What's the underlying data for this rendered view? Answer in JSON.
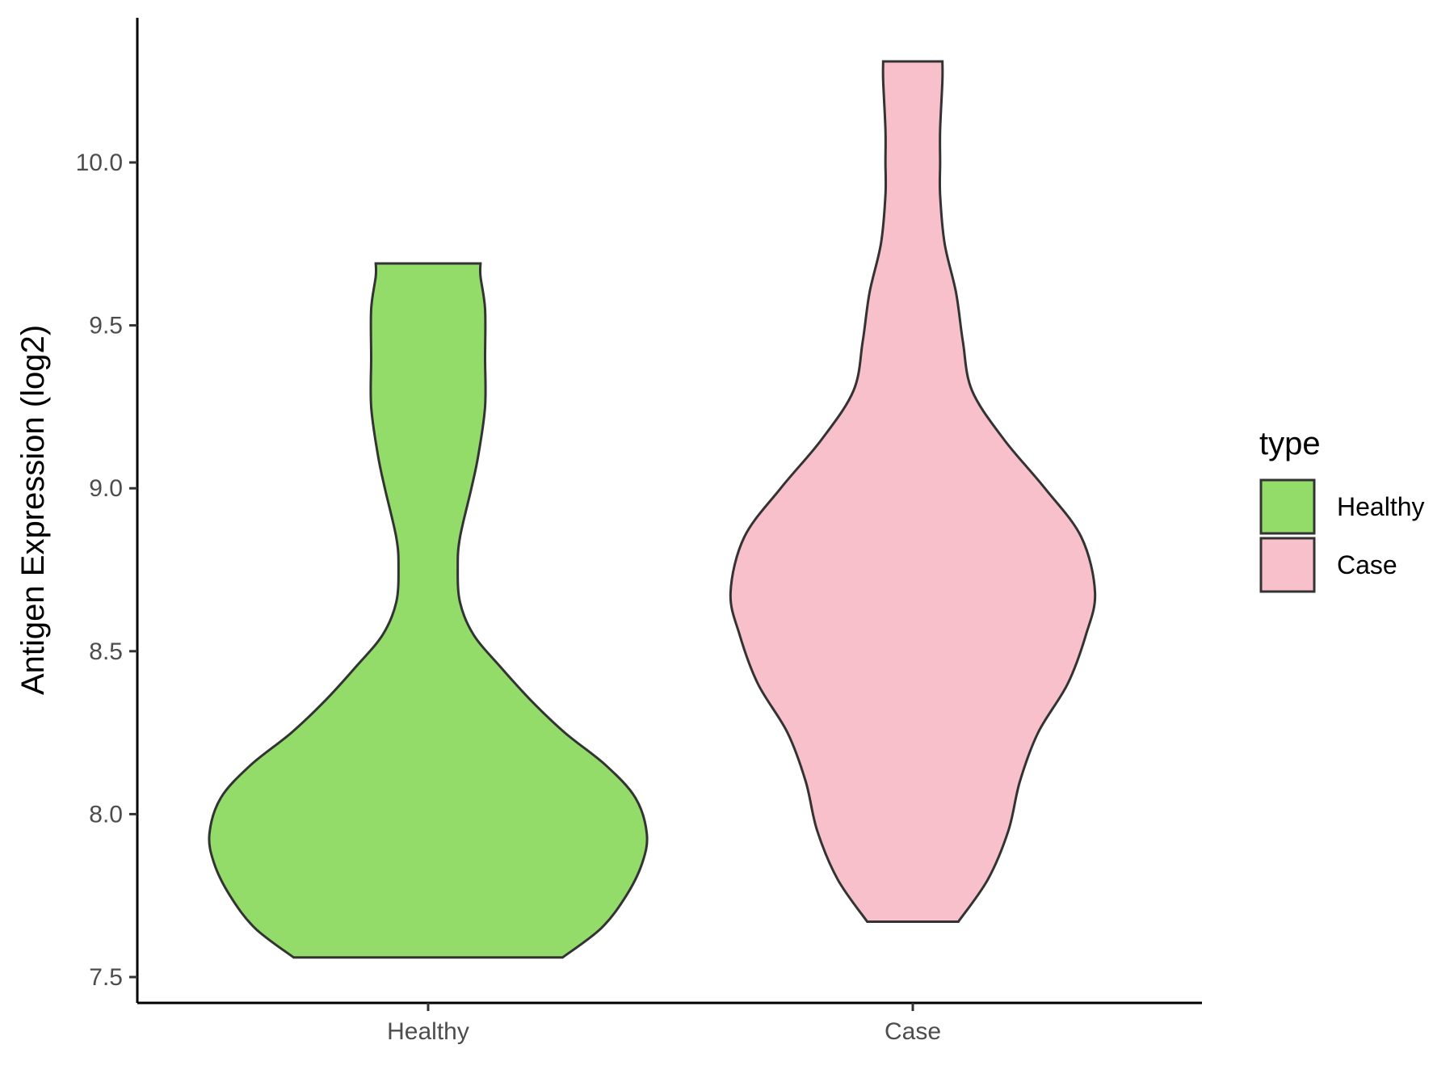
{
  "chart_data": {
    "type": "violin",
    "ylabel": "Antigen Expression (log2)",
    "xlabel": "",
    "ylim": [
      7.42,
      10.45
    ],
    "yticks": [
      7.5,
      8.0,
      8.5,
      9.0,
      9.5,
      10.0
    ],
    "ytick_labels": [
      "7.5",
      "8.0",
      "8.5",
      "9.0",
      "9.5",
      "10.0"
    ],
    "categories": [
      "Healthy",
      "Case"
    ],
    "grid": false,
    "legend": {
      "title": "type",
      "position": "right",
      "entries": [
        {
          "label": "Healthy",
          "color": "#93DC6A"
        },
        {
          "label": "Case",
          "color": "#F8C0CB"
        }
      ]
    },
    "series": [
      {
        "category": "Healthy",
        "color": "#93DC6A",
        "min": 7.56,
        "max": 9.69,
        "density": [
          [
            7.56,
            0.59
          ],
          [
            7.65,
            0.76
          ],
          [
            7.75,
            0.87
          ],
          [
            7.85,
            0.94
          ],
          [
            7.94,
            0.96
          ],
          [
            8.05,
            0.91
          ],
          [
            8.15,
            0.78
          ],
          [
            8.25,
            0.6
          ],
          [
            8.35,
            0.45
          ],
          [
            8.45,
            0.32
          ],
          [
            8.55,
            0.2
          ],
          [
            8.65,
            0.14
          ],
          [
            8.76,
            0.13
          ],
          [
            8.85,
            0.14
          ],
          [
            9.0,
            0.19
          ],
          [
            9.1,
            0.22
          ],
          [
            9.25,
            0.25
          ],
          [
            9.4,
            0.25
          ],
          [
            9.55,
            0.25
          ],
          [
            9.65,
            0.23
          ],
          [
            9.69,
            0.23
          ]
        ]
      },
      {
        "category": "Case",
        "color": "#F8C0CB",
        "min": 7.67,
        "max": 10.31,
        "density": [
          [
            7.67,
            0.2
          ],
          [
            7.8,
            0.33
          ],
          [
            7.95,
            0.42
          ],
          [
            8.1,
            0.47
          ],
          [
            8.25,
            0.55
          ],
          [
            8.4,
            0.68
          ],
          [
            8.55,
            0.76
          ],
          [
            8.68,
            0.8
          ],
          [
            8.85,
            0.74
          ],
          [
            9.0,
            0.58
          ],
          [
            9.15,
            0.4
          ],
          [
            9.3,
            0.26
          ],
          [
            9.45,
            0.22
          ],
          [
            9.6,
            0.19
          ],
          [
            9.75,
            0.14
          ],
          [
            9.9,
            0.12
          ],
          [
            10.0,
            0.12
          ],
          [
            10.1,
            0.12
          ],
          [
            10.25,
            0.13
          ],
          [
            10.31,
            0.13
          ]
        ]
      }
    ]
  }
}
